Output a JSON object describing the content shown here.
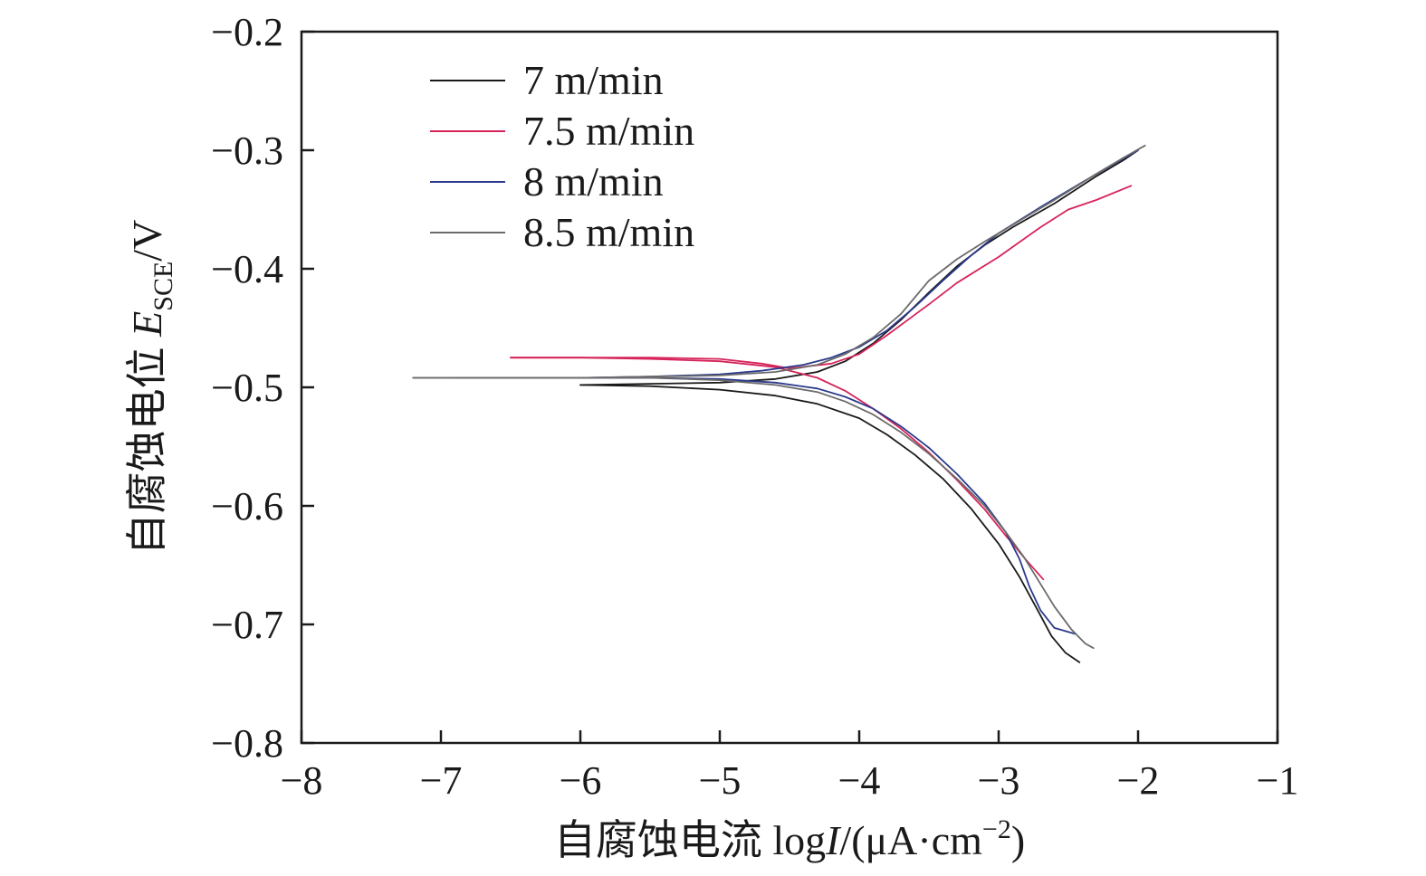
{
  "colors": {
    "axis": "#1a1a1a",
    "series": [
      "#1a1a1a",
      "#d6245a",
      "#2b3a8c",
      "#6b6b6b"
    ]
  },
  "chart_data": {
    "type": "line",
    "xlabel": "自腐蚀电流 logI/(μA·cm−2)",
    "xlabel_parts": {
      "prefix": "自腐蚀电流 log",
      "italic": "I",
      "suffix": "/(μA·cm",
      "sup": "−2",
      "close": ")"
    },
    "ylabel": "自腐蚀电位 ESCE/V",
    "ylabel_parts": {
      "prefix": "自腐蚀电位 ",
      "italic": "E",
      "sub": "SCE",
      "suffix": "/V"
    },
    "xlim": [
      -8,
      -1
    ],
    "ylim": [
      -0.8,
      -0.2
    ],
    "xticks": [
      -8,
      -7,
      -6,
      -5,
      -4,
      -3,
      -2,
      -1
    ],
    "xtick_labels": [
      "−8",
      "−7",
      "−6",
      "−5",
      "−4",
      "−3",
      "−2",
      "−1"
    ],
    "yticks": [
      -0.2,
      -0.3,
      -0.4,
      -0.5,
      -0.6,
      -0.7,
      -0.8
    ],
    "ytick_labels": [
      "−0.2",
      "−0.3",
      "−0.4",
      "−0.5",
      "−0.6",
      "−0.7",
      "−0.8"
    ],
    "grid": false,
    "legend_position": "top-left",
    "series": [
      {
        "name": "7 m/min",
        "anodic": [
          [
            -6.0,
            -0.498
          ],
          [
            -5.5,
            -0.497
          ],
          [
            -5.0,
            -0.496
          ],
          [
            -4.6,
            -0.493
          ],
          [
            -4.3,
            -0.487
          ],
          [
            -4.1,
            -0.478
          ],
          [
            -3.9,
            -0.463
          ],
          [
            -3.7,
            -0.443
          ],
          [
            -3.5,
            -0.42
          ],
          [
            -3.3,
            -0.398
          ],
          [
            -3.1,
            -0.38
          ],
          [
            -2.9,
            -0.365
          ],
          [
            -2.6,
            -0.345
          ],
          [
            -2.3,
            -0.322
          ],
          [
            -2.1,
            -0.308
          ],
          [
            -2.0,
            -0.3
          ]
        ],
        "cathodic": [
          [
            -6.0,
            -0.498
          ],
          [
            -5.5,
            -0.499
          ],
          [
            -5.0,
            -0.502
          ],
          [
            -4.6,
            -0.507
          ],
          [
            -4.3,
            -0.514
          ],
          [
            -4.0,
            -0.526
          ],
          [
            -3.8,
            -0.54
          ],
          [
            -3.6,
            -0.557
          ],
          [
            -3.4,
            -0.577
          ],
          [
            -3.2,
            -0.602
          ],
          [
            -3.0,
            -0.632
          ],
          [
            -2.85,
            -0.66
          ],
          [
            -2.72,
            -0.688
          ],
          [
            -2.62,
            -0.71
          ],
          [
            -2.52,
            -0.724
          ],
          [
            -2.42,
            -0.732
          ]
        ]
      },
      {
        "name": "7.5 m/min",
        "anodic": [
          [
            -6.5,
            -0.475
          ],
          [
            -6.0,
            -0.475
          ],
          [
            -5.5,
            -0.475
          ],
          [
            -5.0,
            -0.476
          ],
          [
            -4.7,
            -0.48
          ],
          [
            -4.5,
            -0.484
          ],
          [
            -4.2,
            -0.48
          ],
          [
            -4.0,
            -0.472
          ],
          [
            -3.8,
            -0.456
          ],
          [
            -3.5,
            -0.43
          ],
          [
            -3.3,
            -0.412
          ],
          [
            -3.0,
            -0.39
          ],
          [
            -2.7,
            -0.365
          ],
          [
            -2.5,
            -0.35
          ],
          [
            -2.3,
            -0.342
          ],
          [
            -2.05,
            -0.33
          ]
        ],
        "cathodic": [
          [
            -6.5,
            -0.475
          ],
          [
            -6.0,
            -0.475
          ],
          [
            -5.5,
            -0.476
          ],
          [
            -5.0,
            -0.478
          ],
          [
            -4.6,
            -0.483
          ],
          [
            -4.3,
            -0.492
          ],
          [
            -4.1,
            -0.503
          ],
          [
            -3.9,
            -0.518
          ],
          [
            -3.7,
            -0.535
          ],
          [
            -3.5,
            -0.555
          ],
          [
            -3.3,
            -0.578
          ],
          [
            -3.1,
            -0.603
          ],
          [
            -2.95,
            -0.625
          ],
          [
            -2.8,
            -0.646
          ],
          [
            -2.68,
            -0.662
          ]
        ]
      },
      {
        "name": "8 m/min",
        "anodic": [
          [
            -6.9,
            -0.492
          ],
          [
            -6.5,
            -0.492
          ],
          [
            -6.0,
            -0.492
          ],
          [
            -5.5,
            -0.491
          ],
          [
            -5.0,
            -0.489
          ],
          [
            -4.7,
            -0.486
          ],
          [
            -4.4,
            -0.481
          ],
          [
            -4.2,
            -0.475
          ],
          [
            -4.0,
            -0.466
          ],
          [
            -3.8,
            -0.452
          ],
          [
            -3.6,
            -0.432
          ],
          [
            -3.4,
            -0.41
          ],
          [
            -3.2,
            -0.389
          ],
          [
            -3.0,
            -0.37
          ],
          [
            -2.7,
            -0.348
          ],
          [
            -2.4,
            -0.327
          ],
          [
            -2.15,
            -0.31
          ],
          [
            -2.0,
            -0.3
          ]
        ],
        "cathodic": [
          [
            -6.9,
            -0.492
          ],
          [
            -6.5,
            -0.492
          ],
          [
            -6.0,
            -0.492
          ],
          [
            -5.5,
            -0.492
          ],
          [
            -5.0,
            -0.493
          ],
          [
            -4.6,
            -0.496
          ],
          [
            -4.3,
            -0.501
          ],
          [
            -4.1,
            -0.508
          ],
          [
            -3.9,
            -0.518
          ],
          [
            -3.7,
            -0.533
          ],
          [
            -3.5,
            -0.551
          ],
          [
            -3.3,
            -0.573
          ],
          [
            -3.1,
            -0.598
          ],
          [
            -2.95,
            -0.622
          ],
          [
            -2.85,
            -0.645
          ],
          [
            -2.78,
            -0.668
          ],
          [
            -2.7,
            -0.688
          ],
          [
            -2.6,
            -0.703
          ],
          [
            -2.45,
            -0.708
          ]
        ]
      },
      {
        "name": "8.5 m/min",
        "anodic": [
          [
            -7.2,
            -0.492
          ],
          [
            -6.5,
            -0.492
          ],
          [
            -6.0,
            -0.492
          ],
          [
            -5.5,
            -0.491
          ],
          [
            -5.0,
            -0.49
          ],
          [
            -4.6,
            -0.487
          ],
          [
            -4.3,
            -0.481
          ],
          [
            -4.1,
            -0.472
          ],
          [
            -3.9,
            -0.458
          ],
          [
            -3.7,
            -0.438
          ],
          [
            -3.5,
            -0.41
          ],
          [
            -3.3,
            -0.392
          ],
          [
            -3.1,
            -0.377
          ],
          [
            -2.9,
            -0.363
          ],
          [
            -2.6,
            -0.342
          ],
          [
            -2.3,
            -0.32
          ],
          [
            -2.1,
            -0.306
          ],
          [
            -1.95,
            -0.296
          ]
        ],
        "cathodic": [
          [
            -7.2,
            -0.492
          ],
          [
            -6.5,
            -0.492
          ],
          [
            -6.0,
            -0.492
          ],
          [
            -5.5,
            -0.492
          ],
          [
            -5.0,
            -0.494
          ],
          [
            -4.6,
            -0.498
          ],
          [
            -4.3,
            -0.504
          ],
          [
            -4.1,
            -0.512
          ],
          [
            -3.9,
            -0.523
          ],
          [
            -3.7,
            -0.538
          ],
          [
            -3.5,
            -0.556
          ],
          [
            -3.3,
            -0.577
          ],
          [
            -3.1,
            -0.6
          ],
          [
            -2.95,
            -0.622
          ],
          [
            -2.82,
            -0.643
          ],
          [
            -2.72,
            -0.662
          ],
          [
            -2.6,
            -0.685
          ],
          [
            -2.48,
            -0.704
          ],
          [
            -2.38,
            -0.716
          ],
          [
            -2.32,
            -0.72
          ]
        ]
      }
    ]
  }
}
